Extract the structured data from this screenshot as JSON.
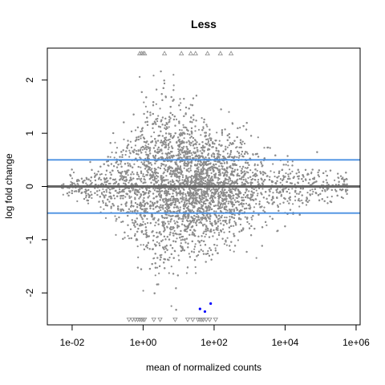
{
  "chart_data": {
    "type": "scatter",
    "title": "Less",
    "xlabel": "mean of normalized counts",
    "ylabel": "log fold change",
    "x_scale": "log10",
    "x_ticks": [
      "1e-02",
      "1e+00",
      "1e+02",
      "1e+04",
      "1e+06"
    ],
    "x_tick_values": [
      0.01,
      1,
      100,
      10000,
      1000000
    ],
    "xlim": [
      0.002,
      1300000
    ],
    "y_ticks": [
      "-2",
      "-1",
      "0",
      "1",
      "2"
    ],
    "y_tick_values": [
      -2,
      -1,
      0,
      1,
      2
    ],
    "ylim": [
      -2.6,
      2.6
    ],
    "grid": false,
    "legend": "none",
    "colors": {
      "points": "#8c8c8c",
      "significant": "#0000ff",
      "zero_line": "#666666",
      "threshold_lines": "#4a90e2",
      "frame": "#000000"
    },
    "reference_lines": [
      {
        "y": 0,
        "color": "#666666"
      },
      {
        "y": 0.5,
        "color": "#4a90e2"
      },
      {
        "y": -0.5,
        "color": "#4a90e2"
      }
    ],
    "clipped_up": {
      "y": 2.5,
      "x": [
        0.8,
        0.9,
        1.0,
        1.1,
        4,
        12,
        22,
        30,
        65,
        150,
        300
      ],
      "marker": "triangle-up"
    },
    "clipped_down": {
      "y": -2.5,
      "x": [
        0.4,
        0.5,
        0.6,
        0.7,
        0.8,
        0.9,
        1.0,
        1.1,
        2,
        3,
        8,
        18,
        25,
        35,
        40,
        45,
        50,
        60,
        75,
        110
      ],
      "marker": "triangle-down"
    },
    "significant_points": [
      {
        "x": 80,
        "y": -2.2
      },
      {
        "x": 55,
        "y": -2.35
      },
      {
        "x": 40,
        "y": -2.3
      }
    ],
    "cloud": {
      "description": "dense point cloud",
      "n_points": 9000,
      "log10_mean_range": [
        -2.3,
        5.8
      ],
      "log10_mean_center": 1.3
    }
  }
}
